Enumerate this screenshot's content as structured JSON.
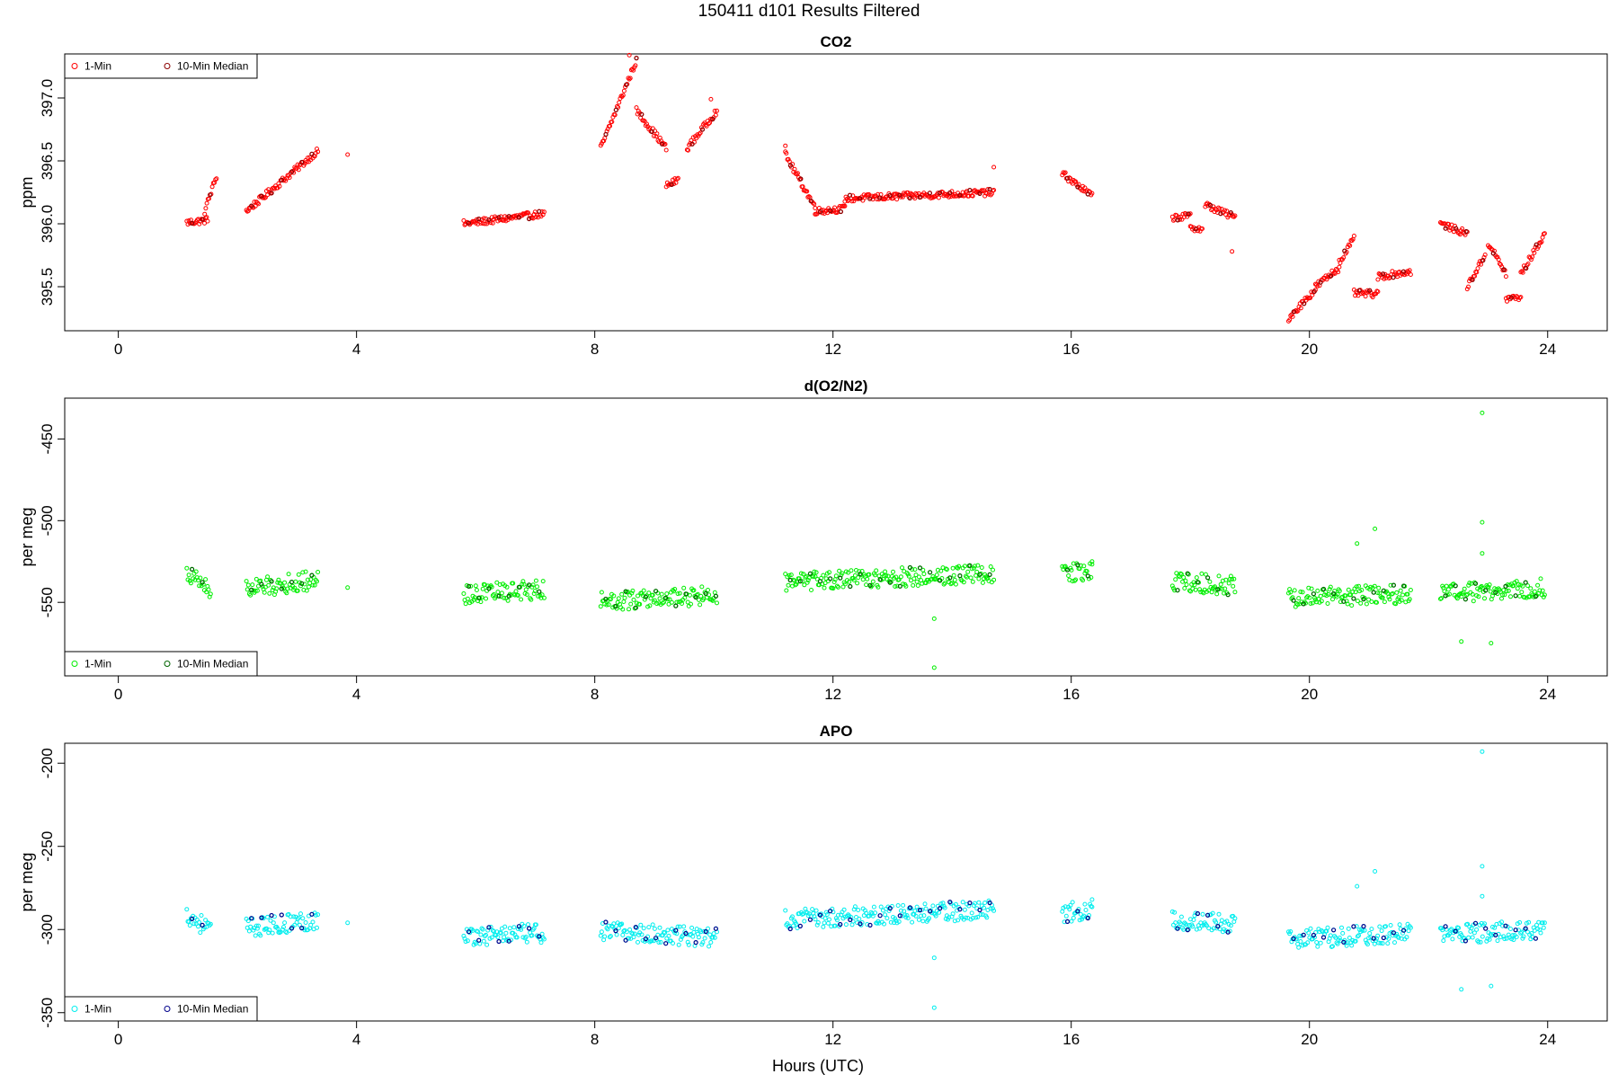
{
  "figure": {
    "title": "150411   d101   Results Filtered",
    "xlabel": "Hours (UTC)"
  },
  "legend_labels": [
    "1-Min",
    "10-Min Median"
  ],
  "chart_data": [
    {
      "type": "scatter",
      "title": "CO2",
      "ylabel": "ppm",
      "xlim": [
        -0.9,
        25
      ],
      "ylim": [
        395.15,
        397.35
      ],
      "xticks": [
        0,
        4,
        8,
        12,
        16,
        20,
        24
      ],
      "yticks": [
        395.5,
        396.0,
        396.5,
        397.0
      ],
      "ytick_labels": [
        "395.5",
        "396.0",
        "396.5",
        "397.0"
      ],
      "legend_position": "top-left",
      "colors": {
        "one_min": "#ff0000",
        "median": "#8b0000"
      },
      "segments": [
        [
          1.15,
          1.5,
          396.01,
          396.03
        ],
        [
          1.45,
          1.65,
          396.1,
          396.38
        ],
        [
          2.15,
          3.35,
          396.1,
          396.58
        ],
        [
          5.8,
          7.15,
          396.0,
          396.08
        ],
        [
          8.1,
          8.7,
          396.6,
          397.3
        ],
        [
          8.7,
          9.2,
          396.9,
          396.6
        ],
        [
          9.2,
          9.4,
          396.3,
          396.35
        ],
        [
          9.55,
          10.05,
          396.6,
          396.9
        ],
        [
          11.2,
          11.7,
          396.55,
          396.13
        ],
        [
          11.7,
          12.2,
          396.1,
          396.12
        ],
        [
          12.2,
          14.7,
          396.2,
          396.25
        ],
        [
          15.85,
          16.35,
          396.4,
          396.22
        ],
        [
          17.7,
          18.0,
          396.05,
          396.06
        ],
        [
          18.0,
          18.2,
          395.98,
          395.95
        ],
        [
          18.25,
          18.75,
          396.15,
          396.05
        ],
        [
          19.65,
          20.1,
          395.25,
          395.48
        ],
        [
          20.1,
          20.5,
          395.5,
          395.65
        ],
        [
          20.5,
          20.75,
          395.7,
          395.88
        ],
        [
          20.75,
          21.15,
          395.45,
          395.44
        ],
        [
          21.15,
          21.7,
          395.58,
          395.62
        ],
        [
          22.2,
          22.65,
          396.0,
          395.92
        ],
        [
          22.65,
          22.95,
          395.5,
          395.75
        ],
        [
          23.0,
          23.3,
          395.85,
          395.6
        ],
        [
          23.3,
          23.55,
          395.4,
          395.42
        ],
        [
          23.55,
          23.95,
          395.6,
          395.92
        ]
      ],
      "points": [
        [
          3.85,
          396.55
        ],
        [
          11.2,
          396.62
        ],
        [
          14.7,
          396.45
        ],
        [
          18.7,
          395.78
        ],
        [
          9.95,
          396.99
        ],
        [
          8.58,
          397.34
        ]
      ]
    },
    {
      "type": "scatter",
      "title": "d(O2/N2)",
      "ylabel": "per meg",
      "xlim": [
        -0.9,
        25
      ],
      "ylim": [
        -595,
        -425
      ],
      "xticks": [
        0,
        4,
        8,
        12,
        16,
        20,
        24
      ],
      "yticks": [
        -550,
        -500,
        -450
      ],
      "ytick_labels": [
        "-550",
        "-500",
        "-450"
      ],
      "legend_position": "bottom-left",
      "colors": {
        "one_min": "#00ee00",
        "median": "#006400"
      },
      "segments": [
        [
          1.15,
          1.55,
          -532,
          -542
        ],
        [
          2.15,
          3.35,
          -542,
          -536
        ],
        [
          5.8,
          7.15,
          -545,
          -542
        ],
        [
          8.1,
          10.05,
          -549,
          -546
        ],
        [
          11.2,
          14.7,
          -538,
          -532
        ],
        [
          15.85,
          16.35,
          -533,
          -530
        ],
        [
          17.7,
          18.75,
          -537,
          -540
        ],
        [
          19.65,
          21.7,
          -547,
          -545
        ],
        [
          22.2,
          23.95,
          -545,
          -541
        ]
      ],
      "points": [
        [
          3.85,
          -541
        ],
        [
          13.7,
          -560
        ],
        [
          13.7,
          -590
        ],
        [
          21.1,
          -505
        ],
        [
          20.8,
          -514
        ],
        [
          22.9,
          -434
        ],
        [
          22.9,
          -501
        ],
        [
          22.9,
          -520
        ],
        [
          22.55,
          -574
        ],
        [
          23.05,
          -575
        ],
        [
          16.35,
          -525
        ]
      ]
    },
    {
      "type": "scatter",
      "title": "APO",
      "ylabel": "per meg",
      "xlim": [
        -0.9,
        25
      ],
      "ylim": [
        -355,
        -188
      ],
      "xticks": [
        0,
        4,
        8,
        12,
        16,
        20,
        24
      ],
      "yticks": [
        -350,
        -300,
        -250,
        -200
      ],
      "ytick_labels": [
        "-350",
        "-300",
        "-250",
        "-200"
      ],
      "legend_position": "bottom-left",
      "colors": {
        "one_min": "#00eeee",
        "median": "#00008b"
      },
      "segments": [
        [
          1.15,
          1.55,
          -291,
          -300
        ],
        [
          2.15,
          3.35,
          -299,
          -294
        ],
        [
          5.8,
          7.15,
          -304,
          -302
        ],
        [
          8.1,
          10.05,
          -301,
          -305
        ],
        [
          11.2,
          14.7,
          -294,
          -288
        ],
        [
          15.85,
          16.35,
          -290,
          -288
        ],
        [
          17.7,
          18.75,
          -294,
          -297
        ],
        [
          19.65,
          21.7,
          -306,
          -302
        ],
        [
          22.2,
          23.95,
          -303,
          -300
        ]
      ],
      "points": [
        [
          3.85,
          -296
        ],
        [
          13.7,
          -317
        ],
        [
          13.7,
          -347
        ],
        [
          21.1,
          -265
        ],
        [
          20.8,
          -274
        ],
        [
          22.9,
          -193
        ],
        [
          22.9,
          -262
        ],
        [
          22.9,
          -280
        ],
        [
          22.55,
          -336
        ],
        [
          23.05,
          -334
        ],
        [
          16.35,
          -282
        ]
      ]
    }
  ]
}
